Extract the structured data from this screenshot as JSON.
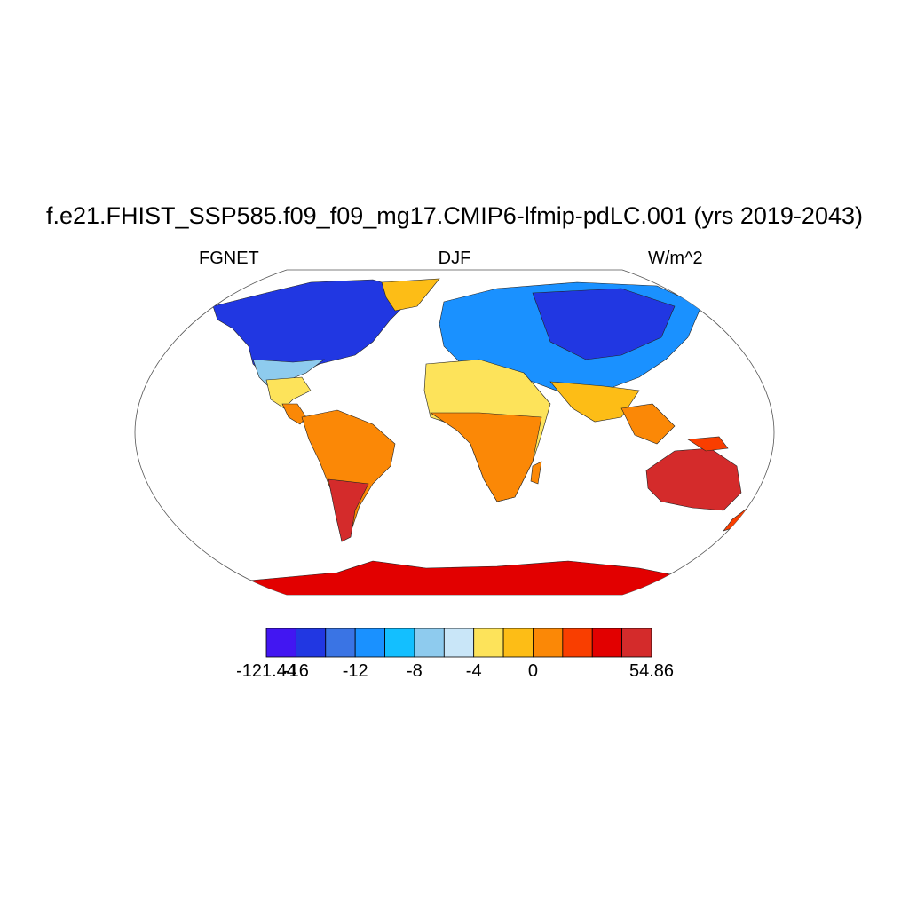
{
  "title": "f.e21.FHIST_SSP585.f09_f09_mg17.CMIP6-lfmip-pdLC.001 (yrs 2019-2043)",
  "subtitle_left": "FGNET",
  "subtitle_center": "DJF",
  "subtitle_right": "W/m^2",
  "colorbar": {
    "colors": [
      "#4216f2",
      "#2137e2",
      "#3a74e4",
      "#1a91ff",
      "#13bfff",
      "#8ecbee",
      "#c9e6f8",
      "#fde35a",
      "#fdbd16",
      "#fb8806",
      "#f93e00",
      "#e20000",
      "#d42b2b"
    ],
    "tick_labels": [
      "-121.44",
      "-16",
      "-12",
      "-8",
      "-4",
      "0",
      "54.86"
    ],
    "tick_boundary_index": [
      0,
      1,
      3,
      5,
      7,
      9,
      13
    ]
  }
}
